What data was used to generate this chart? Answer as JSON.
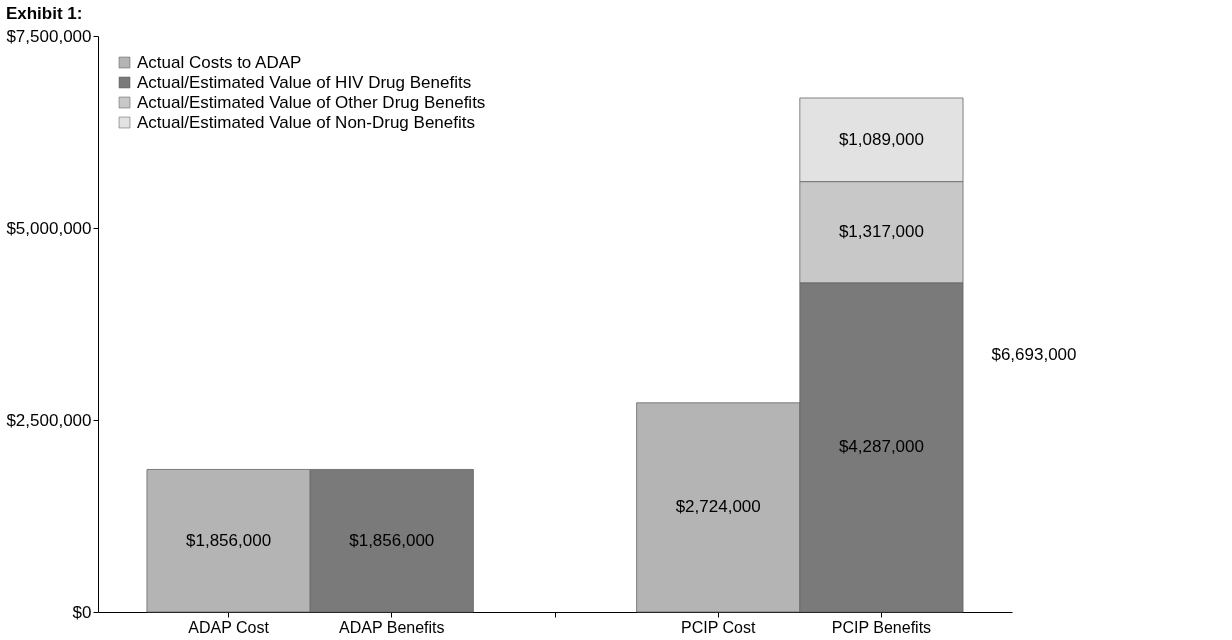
{
  "chart_data": {
    "type": "bar",
    "title": "Exhibit 1:",
    "stacked": true,
    "categories": [
      "ADAP Cost",
      "ADAP Benefits",
      null,
      "PCIP Cost",
      "PCIP Benefits"
    ],
    "series": [
      {
        "name": "Actual Costs to ADAP",
        "color": "#b4b4b4",
        "values": [
          1856000,
          null,
          null,
          2724000,
          null
        ],
        "value_labels": [
          "$1,856,000",
          null,
          null,
          "$2,724,000",
          null
        ]
      },
      {
        "name": "Actual/Estimated Value of HIV Drug Benefits",
        "color": "#7a7a7a",
        "values": [
          null,
          1856000,
          null,
          null,
          4287000
        ],
        "value_labels": [
          null,
          "$1,856,000",
          null,
          null,
          "$4,287,000"
        ]
      },
      {
        "name": "Actual/Estimated Value of Other Drug Benefits",
        "color": "#c8c8c8",
        "values": [
          null,
          null,
          null,
          null,
          1317000
        ],
        "value_labels": [
          null,
          null,
          null,
          null,
          "$1,317,000"
        ]
      },
      {
        "name": "Actual/Estimated Value of Non-Drug Benefits",
        "color": "#e2e2e2",
        "values": [
          null,
          null,
          null,
          null,
          1089000
        ],
        "value_labels": [
          null,
          null,
          null,
          null,
          "$1,089,000"
        ]
      }
    ],
    "ylim": [
      0,
      7500000
    ],
    "yticks": [
      {
        "value": 0,
        "label": "$0"
      },
      {
        "value": 2500000,
        "label": "$2,500,000"
      },
      {
        "value": 5000000,
        "label": "$5,000,000"
      },
      {
        "value": 7500000,
        "label": "$7,500,000"
      }
    ],
    "totals": [
      null,
      null,
      null,
      null,
      "$6,693,000"
    ],
    "grid": false,
    "legend": "top left"
  }
}
